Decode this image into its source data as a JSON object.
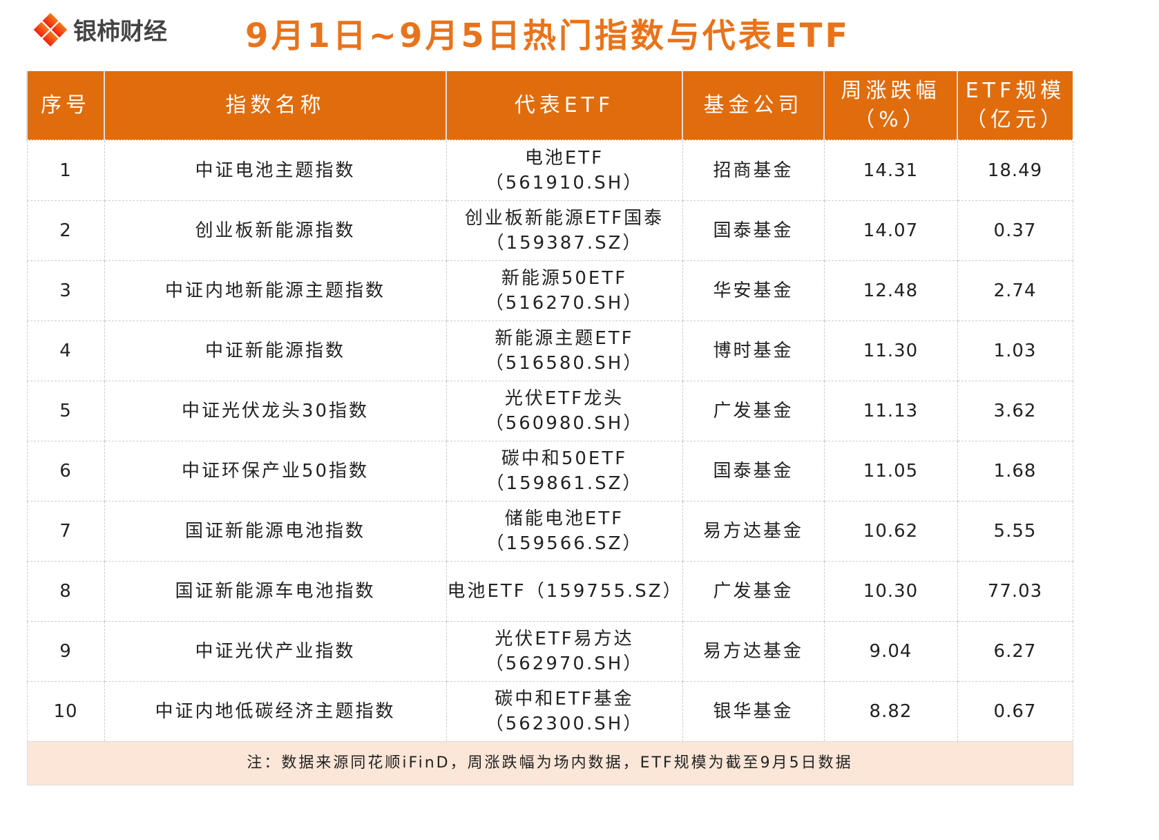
{
  "brand": {
    "name": "银柿财经"
  },
  "title": "9月1日~9月5日热门指数与代表ETF",
  "colors": {
    "header_bg": "#e06c0c",
    "title": "#e8731b",
    "note_bg": "#fbe6d8"
  },
  "table": {
    "headers": [
      "序号",
      "指数名称",
      "代表ETF",
      "基金公司",
      "周涨跌幅（%）",
      "ETF规模（亿元）"
    ],
    "rows": [
      [
        "1",
        "中证电池主题指数",
        "电池ETF（561910.SH）",
        "招商基金",
        "14.31",
        "18.49"
      ],
      [
        "2",
        "创业板新能源指数",
        "创业板新能源ETF国泰（159387.SZ）",
        "国泰基金",
        "14.07",
        "0.37"
      ],
      [
        "3",
        "中证内地新能源主题指数",
        "新能源50ETF（516270.SH）",
        "华安基金",
        "12.48",
        "2.74"
      ],
      [
        "4",
        "中证新能源指数",
        "新能源主题ETF（516580.SH）",
        "博时基金",
        "11.30",
        "1.03"
      ],
      [
        "5",
        "中证光伏龙头30指数",
        "光伏ETF龙头（560980.SH）",
        "广发基金",
        "11.13",
        "3.62"
      ],
      [
        "6",
        "中证环保产业50指数",
        "碳中和50ETF（159861.SZ）",
        "国泰基金",
        "11.05",
        "1.68"
      ],
      [
        "7",
        "国证新能源电池指数",
        "储能电池ETF（159566.SZ）",
        "易方达基金",
        "10.62",
        "5.55"
      ],
      [
        "8",
        "国证新能源车电池指数",
        "电池ETF（159755.SZ）",
        "广发基金",
        "10.30",
        "77.03"
      ],
      [
        "9",
        "中证光伏产业指数",
        "光伏ETF易方达（562970.SH）",
        "易方达基金",
        "9.04",
        "6.27"
      ],
      [
        "10",
        "中证内地低碳经济主题指数",
        "碳中和ETF基金（562300.SH）",
        "银华基金",
        "8.82",
        "0.67"
      ]
    ],
    "note": "注：数据来源同花顺iFinD，周涨跌幅为场内数据，ETF规模为截至9月5日数据"
  }
}
